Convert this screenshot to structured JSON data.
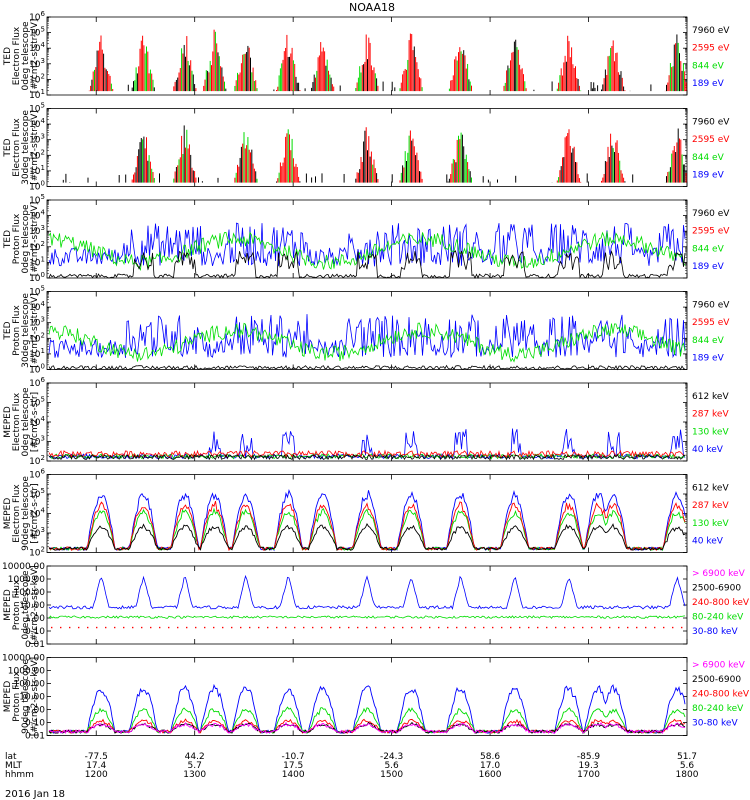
{
  "chart_data": {
    "type": "line",
    "title": "NOAA18",
    "date_label": "2016 Jan 18",
    "x": {
      "range": [
        1150,
        1800
      ],
      "ticks": [
        1200,
        1300,
        1400,
        1500,
        1600,
        1700,
        1800
      ],
      "tick_labels": [
        "1200",
        "1300",
        "1400",
        "1500",
        "1600",
        "1700",
        "1800"
      ],
      "footer_rows": [
        {
          "name": "lat",
          "values": [
            "-77.5",
            "44.2",
            "-10.7",
            "-24.3",
            "58.6",
            "-85.9",
            "51.7"
          ]
        },
        {
          "name": "MLT",
          "values": [
            "17.4",
            "5.7",
            "17.5",
            "5.6",
            "17.0",
            "19.3",
            "5.6"
          ]
        },
        {
          "name": "hhmm",
          "values": [
            "1200",
            "1300",
            "1400",
            "1500",
            "1600",
            "1700",
            "1800"
          ]
        }
      ]
    },
    "panels": [
      {
        "ylabel": [
          "TED",
          "Electron Flux",
          "0deg telescope",
          "[#/cm2-s-str-eV]"
        ],
        "ylog": [
          1,
          6
        ],
        "yticks": [
          "10^1",
          "10^2",
          "10^3",
          "10^4",
          "10^5",
          "10^6"
        ],
        "legend": [
          {
            "name": "7960 eV",
            "color": "#000000"
          },
          {
            "name": "2595 eV",
            "color": "#ff0000"
          },
          {
            "name": "844 eV",
            "color": "#00dd00"
          },
          {
            "name": "189 eV",
            "color": "#0000ff"
          }
        ],
        "style": "spiky",
        "events": [
          1205,
          1248,
          1290,
          1320,
          1352,
          1395,
          1430,
          1475,
          1520,
          1570,
          1625,
          1680,
          1725,
          1790
        ]
      },
      {
        "ylabel": [
          "TED",
          "Electron Flux",
          "30deg telescope",
          "[#/cm2-s-str-eV]"
        ],
        "ylog": [
          0,
          5
        ],
        "yticks": [
          "10^0",
          "10^1",
          "10^2",
          "10^3",
          "10^4",
          "10^5"
        ],
        "legend": [
          {
            "name": "7960 eV",
            "color": "#000000"
          },
          {
            "name": "2595 eV",
            "color": "#ff0000"
          },
          {
            "name": "844 eV",
            "color": "#00dd00"
          },
          {
            "name": "189 eV",
            "color": "#0000ff"
          }
        ],
        "style": "spiky",
        "events": [
          1248,
          1290,
          1352,
          1395,
          1475,
          1520,
          1570,
          1680,
          1725,
          1790
        ]
      },
      {
        "ylabel": [
          "TED",
          "Proton Flux",
          "0deg telescope",
          "[#/cm2-s-str-eV]"
        ],
        "ylog": [
          0,
          5
        ],
        "yticks": [
          "10^0",
          "10^1",
          "10^2",
          "10^3",
          "10^4",
          "10^5"
        ],
        "legend": [
          {
            "name": "7960 eV",
            "color": "#000000"
          },
          {
            "name": "2595 eV",
            "color": "#ff0000"
          },
          {
            "name": "844 eV",
            "color": "#00dd00"
          },
          {
            "name": "189 eV",
            "color": "#0000ff"
          }
        ],
        "style": "noisy",
        "events": [
          1248,
          1290,
          1352,
          1395,
          1475,
          1520,
          1570,
          1625,
          1680,
          1725,
          1790
        ]
      },
      {
        "ylabel": [
          "TED",
          "Proton Flux",
          "30deg telescope",
          "[#/cm2-s-str-eV]"
        ],
        "ylog": [
          0,
          5
        ],
        "yticks": [
          "10^0",
          "10^1",
          "10^2",
          "10^3",
          "10^4",
          "10^5"
        ],
        "legend": [
          {
            "name": "7960 eV",
            "color": "#000000"
          },
          {
            "name": "2595 eV",
            "color": "#ff0000"
          },
          {
            "name": "844 eV",
            "color": "#00dd00"
          },
          {
            "name": "189 eV",
            "color": "#0000ff"
          }
        ],
        "style": "noisy_green",
        "events": [
          1248,
          1290,
          1352,
          1395,
          1475,
          1520,
          1570,
          1625,
          1680,
          1725,
          1790
        ]
      },
      {
        "ylabel": [
          "MEPED",
          "Electron Flux",
          "0deg telescope",
          "[#/cm2-s-str]"
        ],
        "ylog": [
          2,
          6
        ],
        "yticks": [
          "10^2",
          "10^3",
          "10^4",
          "10^5",
          "10^6"
        ],
        "legend": [
          {
            "name": "612 keV",
            "color": "#000000"
          },
          {
            "name": "287 keV",
            "color": "#ff0000"
          },
          {
            "name": "130 keV",
            "color": "#00dd00"
          },
          {
            "name": "40 keV",
            "color": "#0000ff"
          }
        ],
        "style": "meped0",
        "events": [
          1320,
          1352,
          1395,
          1475,
          1520,
          1570,
          1625,
          1680,
          1725,
          1790
        ]
      },
      {
        "ylabel": [
          "MEPED",
          "Electron Flux",
          "90deg telescope",
          "[#/cm2-s-str]"
        ],
        "ylog": [
          2,
          6
        ],
        "yticks": [
          "10^2",
          "10^3",
          "10^4",
          "10^5",
          "10^6"
        ],
        "legend": [
          {
            "name": "612 keV",
            "color": "#000000"
          },
          {
            "name": "287 keV",
            "color": "#ff0000"
          },
          {
            "name": "130 keV",
            "color": "#00dd00"
          },
          {
            "name": "40 keV",
            "color": "#0000ff"
          }
        ],
        "style": "humps",
        "events": [
          1205,
          1248,
          1290,
          1320,
          1352,
          1395,
          1430,
          1475,
          1520,
          1570,
          1625,
          1680,
          1710,
          1725,
          1790
        ]
      },
      {
        "ylabel": [
          "MEPED",
          "Proton Flux",
          "0deg telescope",
          "[#/cm2-s-str-keV]"
        ],
        "ylog": [
          -2,
          4
        ],
        "yticks": [
          "0.01",
          "0.10",
          "1.00",
          "10.00",
          "100.00",
          "1000.00",
          "10000.00"
        ],
        "legend": [
          {
            "name": "> 6900 keV",
            "color": "#ff00ff"
          },
          {
            "name": "2500-6900",
            "color": "#000000"
          },
          {
            "name": "240-800 keV",
            "color": "#ff0000"
          },
          {
            "name": "80-240 keV",
            "color": "#00dd00"
          },
          {
            "name": "30-80 keV",
            "color": "#0000ff"
          }
        ],
        "style": "proton",
        "events": [
          1205,
          1248,
          1290,
          1352,
          1395,
          1475,
          1520,
          1570,
          1625,
          1680,
          1790
        ]
      },
      {
        "ylabel": [
          "MEPED",
          "Proton Flux",
          "90deg telescope",
          "[#/cm2-s-str-keV]"
        ],
        "ylog": [
          -2,
          4
        ],
        "yticks": [
          "0.01",
          "0.10",
          "1.00",
          "10.00",
          "100.00",
          "1000.00",
          "10000.00"
        ],
        "legend": [
          {
            "name": "> 6900 keV",
            "color": "#ff00ff"
          },
          {
            "name": "2500-6900",
            "color": "#000000"
          },
          {
            "name": "240-800 keV",
            "color": "#ff0000"
          },
          {
            "name": "80-240 keV",
            "color": "#00dd00"
          },
          {
            "name": "30-80 keV",
            "color": "#0000ff"
          }
        ],
        "style": "proton_humps",
        "events": [
          1205,
          1248,
          1290,
          1320,
          1352,
          1395,
          1430,
          1475,
          1520,
          1570,
          1625,
          1680,
          1710,
          1725,
          1790
        ]
      }
    ]
  }
}
